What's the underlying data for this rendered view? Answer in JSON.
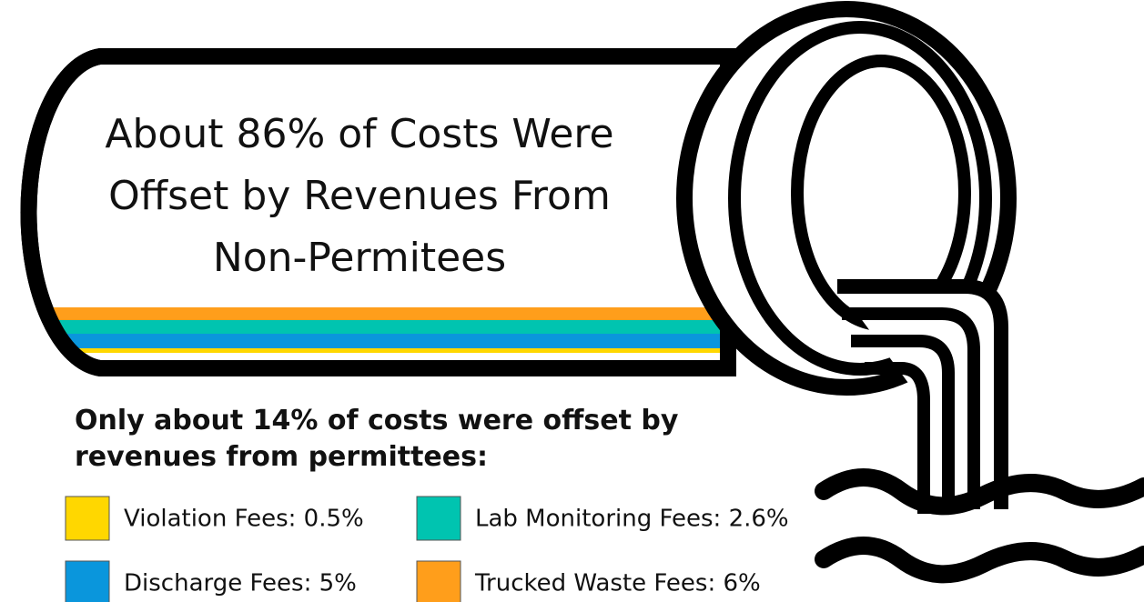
{
  "title_lines": [
    "About 86% of Costs Were",
    "Offset by Revenues From",
    "Non-Permitees"
  ],
  "subtitle_lines": [
    "Only about 14% of costs were offset by",
    "revenues from permittees:"
  ],
  "legend": [
    {
      "label": "Violation Fees: 0.5%",
      "color": "#ffd700"
    },
    {
      "label": "Lab Monitoring Fees: 2.6%",
      "color": "#00c4b0"
    },
    {
      "label": "Discharge Fees: 5%",
      "color": "#0a96dc"
    },
    {
      "label": "Trucked Waste Fees: 6%",
      "color": "#ff9e1b"
    }
  ]
}
